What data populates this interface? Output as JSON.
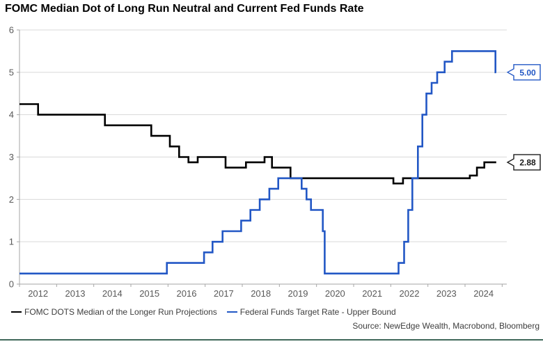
{
  "title": "FOMC Median Dot of Long Run Neutral and Current Fed Funds Rate",
  "source": "Source: NewEdge Wealth, Macrobond, Bloomberg",
  "legend": [
    {
      "label": "FOMC DOTS Median of the Longer Run Projections",
      "color": "#000000"
    },
    {
      "label": "Federal Funds Target Rate - Upper Bound",
      "color": "#2257c5"
    }
  ],
  "colors": {
    "background": "#ffffff",
    "grid": "#d9d9d9",
    "axis": "#a6a6a6",
    "tick_label": "#595959",
    "text": "#3d3d3d",
    "bottom_border": "#40685a",
    "black_series": "#000000",
    "blue_series": "#2257c5"
  },
  "chart_data": {
    "type": "line",
    "style": "step-after",
    "title": "FOMC Median Dot of Long Run Neutral and Current Fed Funds Rate",
    "xlabel": "",
    "ylabel": "",
    "grid": "horizontal",
    "legend_position": "bottom-left",
    "x_axis": {
      "range": [
        2012,
        2025.125
      ],
      "ticks": [
        2012,
        2013,
        2014,
        2015,
        2016,
        2017,
        2018,
        2019,
        2020,
        2021,
        2022,
        2023,
        2024,
        2025
      ],
      "tick_labels": [
        "2012",
        "2013",
        "2014",
        "2015",
        "2016",
        "2017",
        "2018",
        "2019",
        "2020",
        "2021",
        "2022",
        "2023",
        "2024"
      ]
    },
    "y_axis": {
      "range": [
        0,
        6
      ],
      "ticks": [
        0,
        1,
        2,
        3,
        4,
        5,
        6
      ],
      "tick_labels": [
        "0",
        "1",
        "2",
        "3",
        "4",
        "5",
        "6"
      ]
    },
    "series": [
      {
        "name": "FOMC DOTS Median of the Longer Run Projections",
        "color": "#000000",
        "points": [
          [
            2012.0,
            4.25
          ],
          [
            2012.5,
            4.0
          ],
          [
            2014.3,
            3.75
          ],
          [
            2015.55,
            3.5
          ],
          [
            2016.05,
            3.25
          ],
          [
            2016.3,
            3.0
          ],
          [
            2016.55,
            2.875
          ],
          [
            2016.8,
            3.0
          ],
          [
            2017.55,
            2.75
          ],
          [
            2018.1,
            2.875
          ],
          [
            2018.6,
            3.0
          ],
          [
            2018.8,
            2.75
          ],
          [
            2019.3,
            2.5
          ],
          [
            2022.07,
            2.375
          ],
          [
            2022.33,
            2.5
          ],
          [
            2024.13,
            2.5625
          ],
          [
            2024.32,
            2.75
          ],
          [
            2024.52,
            2.875
          ],
          [
            2024.84,
            2.875
          ]
        ]
      },
      {
        "name": "Federal Funds Target Rate - Upper Bound",
        "color": "#2257c5",
        "points": [
          [
            2012.0,
            0.25
          ],
          [
            2015.97,
            0.5
          ],
          [
            2016.97,
            0.75
          ],
          [
            2017.2,
            1.0
          ],
          [
            2017.47,
            1.25
          ],
          [
            2017.97,
            1.5
          ],
          [
            2018.22,
            1.75
          ],
          [
            2018.47,
            2.0
          ],
          [
            2018.73,
            2.25
          ],
          [
            2018.97,
            2.5
          ],
          [
            2019.6,
            2.25
          ],
          [
            2019.73,
            2.0
          ],
          [
            2019.85,
            1.75
          ],
          [
            2020.17,
            1.25
          ],
          [
            2020.22,
            0.25
          ],
          [
            2022.21,
            0.5
          ],
          [
            2022.36,
            1.0
          ],
          [
            2022.47,
            1.75
          ],
          [
            2022.58,
            2.5
          ],
          [
            2022.73,
            3.25
          ],
          [
            2022.85,
            4.0
          ],
          [
            2022.96,
            4.5
          ],
          [
            2023.1,
            4.75
          ],
          [
            2023.25,
            5.0
          ],
          [
            2023.45,
            5.25
          ],
          [
            2023.65,
            5.5
          ],
          [
            2024.82,
            5.0
          ],
          [
            2024.84,
            5.0
          ]
        ]
      }
    ],
    "callouts": [
      {
        "text": "5.00",
        "value": 5.0,
        "color": "#2257c5"
      },
      {
        "text": "2.88",
        "value": 2.875,
        "color": "#1a1a1a"
      }
    ]
  }
}
